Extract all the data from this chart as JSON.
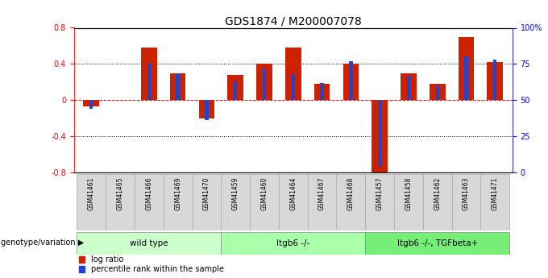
{
  "title": "GDS1874 / M200007078",
  "samples": [
    "GSM41461",
    "GSM41465",
    "GSM41466",
    "GSM41469",
    "GSM41470",
    "GSM41459",
    "GSM41460",
    "GSM41464",
    "GSM41467",
    "GSM41468",
    "GSM41457",
    "GSM41458",
    "GSM41462",
    "GSM41463",
    "GSM41471"
  ],
  "log_ratio": [
    -0.07,
    0.0,
    0.58,
    0.3,
    -0.2,
    0.28,
    0.4,
    0.58,
    0.18,
    0.4,
    -0.82,
    0.3,
    0.18,
    0.7,
    0.42
  ],
  "percentile_rank": [
    44,
    50,
    75,
    68,
    36,
    63,
    72,
    68,
    62,
    77,
    4,
    67,
    60,
    80,
    78
  ],
  "groups": [
    {
      "label": "wild type",
      "start": 0,
      "end": 4,
      "color": "#ccffcc"
    },
    {
      "label": "Itgb6 -/-",
      "start": 5,
      "end": 9,
      "color": "#aaffaa"
    },
    {
      "label": "Itgb6 -/-, TGFbeta+",
      "start": 10,
      "end": 14,
      "color": "#77ee77"
    }
  ],
  "ylim_left": [
    -0.8,
    0.8
  ],
  "ylim_right": [
    0,
    100
  ],
  "bar_color_red": "#cc2200",
  "bar_color_blue": "#2244cc",
  "bar_width": 0.55,
  "blue_bar_width": 0.12,
  "title_fontsize": 10,
  "legend_label_red": "log ratio",
  "legend_label_blue": "percentile rank within the sample",
  "genotype_label": "genotype/variation"
}
